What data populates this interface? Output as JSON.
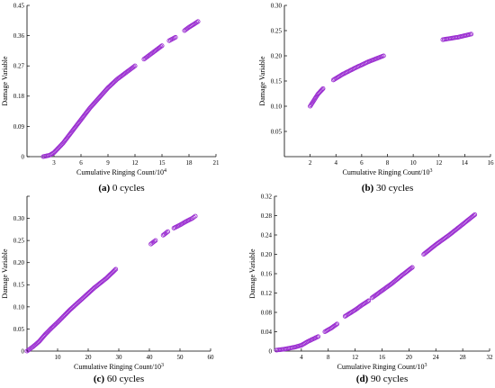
{
  "colors": {
    "marker": "#9b2fd1",
    "axis": "#000000"
  },
  "chart_data": [
    {
      "type": "scatter",
      "panel": "a",
      "caption_letter": "(a)",
      "caption_text": " 0 cycles",
      "xlabel": "Cumulative Ringing Count/10",
      "xlabel_sup": "4",
      "ylabel": "Damage Variable",
      "xlim": [
        0,
        21
      ],
      "ylim": [
        0,
        0.45
      ],
      "xticks": [
        3,
        6,
        9,
        12,
        15,
        18,
        21
      ],
      "yticks": [
        0,
        0.09,
        0.18,
        0.27,
        0.36,
        0.45
      ],
      "ytick_labels": [
        "0",
        "0.09",
        "0.18",
        "0.27",
        "0.36",
        "0.45"
      ],
      "segments": [
        {
          "x": [
            1.8,
            2.5,
            3.0,
            4.0,
            5.0,
            6.0,
            7.0,
            8.0,
            9.0,
            10.0,
            11.0,
            12.0
          ],
          "y": [
            0.0,
            0.004,
            0.012,
            0.04,
            0.075,
            0.11,
            0.145,
            0.175,
            0.205,
            0.23,
            0.25,
            0.27
          ]
        },
        {
          "x": [
            13.0,
            14.0,
            15.0
          ],
          "y": [
            0.29,
            0.31,
            0.33
          ]
        },
        {
          "x": [
            15.8,
            16.5
          ],
          "y": [
            0.345,
            0.355
          ]
        },
        {
          "x": [
            17.5,
            18.0,
            18.6,
            19.0
          ],
          "y": [
            0.375,
            0.385,
            0.395,
            0.402
          ]
        }
      ]
    },
    {
      "type": "scatter",
      "panel": "b",
      "caption_letter": "(b)",
      "caption_text": " 30 cycles",
      "xlabel": "Cumulative Ringing Count/10",
      "xlabel_sup": "3",
      "ylabel": "Damage Variable",
      "xlim": [
        0,
        16
      ],
      "ylim": [
        0,
        0.3
      ],
      "xticks": [
        2,
        4,
        6,
        8,
        10,
        12,
        14,
        16
      ],
      "yticks": [
        0.05,
        0.1,
        0.15,
        0.2,
        0.25,
        0.3
      ],
      "ytick_labels": [
        "0.05",
        "0.10",
        "0.15",
        "0.20",
        "0.25",
        "0.30"
      ],
      "segments": [
        {
          "x": [
            2.0,
            2.3,
            2.6,
            3.0
          ],
          "y": [
            0.1,
            0.112,
            0.124,
            0.135
          ]
        },
        {
          "x": [
            3.8,
            4.5,
            5.5,
            6.5,
            7.0,
            7.7
          ],
          "y": [
            0.152,
            0.163,
            0.176,
            0.188,
            0.193,
            0.2
          ]
        },
        {
          "x": [
            12.3,
            13.0,
            13.5,
            14.0,
            14.5
          ],
          "y": [
            0.232,
            0.235,
            0.237,
            0.24,
            0.243
          ]
        }
      ]
    },
    {
      "type": "scatter",
      "panel": "c",
      "caption_letter": "(c)",
      "caption_text": " 60 cycles",
      "xlabel": "Cumulative Ringing Count/10",
      "xlabel_sup": "3",
      "ylabel": "Damage Variable",
      "xlim": [
        0,
        60
      ],
      "ylim": [
        0,
        0.35
      ],
      "xticks": [
        10,
        20,
        30,
        40,
        50,
        60
      ],
      "yticks": [
        0,
        0.05,
        0.1,
        0.15,
        0.2,
        0.25,
        0.3,
        0.35
      ],
      "ytick_labels": [
        "0",
        "0.05",
        "0.10",
        "0.15",
        "0.20",
        "0.25",
        "0.30",
        ""
      ],
      "segments": [
        {
          "x": [
            0.0,
            2.0,
            4.0,
            6.0,
            8.0,
            10.0,
            14.0,
            18.0,
            22.0,
            26.0,
            29.0
          ],
          "y": [
            0.0,
            0.01,
            0.022,
            0.038,
            0.052,
            0.065,
            0.093,
            0.118,
            0.143,
            0.165,
            0.185
          ]
        },
        {
          "x": [
            40.5,
            42.0
          ],
          "y": [
            0.242,
            0.25
          ]
        },
        {
          "x": [
            44.5,
            46.0
          ],
          "y": [
            0.262,
            0.27
          ]
        },
        {
          "x": [
            48.0,
            50.0,
            52.0,
            54.0,
            55.0
          ],
          "y": [
            0.278,
            0.285,
            0.293,
            0.3,
            0.305
          ]
        }
      ]
    },
    {
      "type": "scatter",
      "panel": "d",
      "caption_letter": "(d)",
      "caption_text": " 90 cycles",
      "xlabel": "Cumulative Ringing Count/10",
      "xlabel_sup": "3",
      "ylabel": "Damage Variable",
      "xlim": [
        0,
        32
      ],
      "ylim": [
        0,
        0.32
      ],
      "xticks": [
        4,
        8,
        12,
        16,
        20,
        24,
        28,
        32
      ],
      "yticks": [
        0,
        0.04,
        0.08,
        0.12,
        0.16,
        0.2,
        0.24,
        0.28,
        0.32
      ],
      "ytick_labels": [
        "0",
        "0.04",
        "0.08",
        "0.12",
        "0.16",
        "0.20",
        "0.24",
        "0.28",
        "0.32"
      ],
      "segments": [
        {
          "x": [
            0.3,
            1.5,
            3.0,
            4.0,
            5.0,
            6.5
          ],
          "y": [
            0.002,
            0.004,
            0.008,
            0.012,
            0.02,
            0.03
          ]
        },
        {
          "x": [
            7.5,
            8.5,
            9.3
          ],
          "y": [
            0.04,
            0.048,
            0.056
          ]
        },
        {
          "x": [
            10.5,
            12.0,
            13.0,
            14.0
          ],
          "y": [
            0.072,
            0.085,
            0.095,
            0.104
          ]
        },
        {
          "x": [
            14.5,
            16.0,
            17.5,
            19.0,
            20.5
          ],
          "y": [
            0.11,
            0.125,
            0.14,
            0.157,
            0.173
          ]
        },
        {
          "x": [
            22.2,
            24.0,
            26.0,
            28.0,
            29.8
          ],
          "y": [
            0.2,
            0.22,
            0.24,
            0.262,
            0.282
          ]
        }
      ]
    }
  ]
}
